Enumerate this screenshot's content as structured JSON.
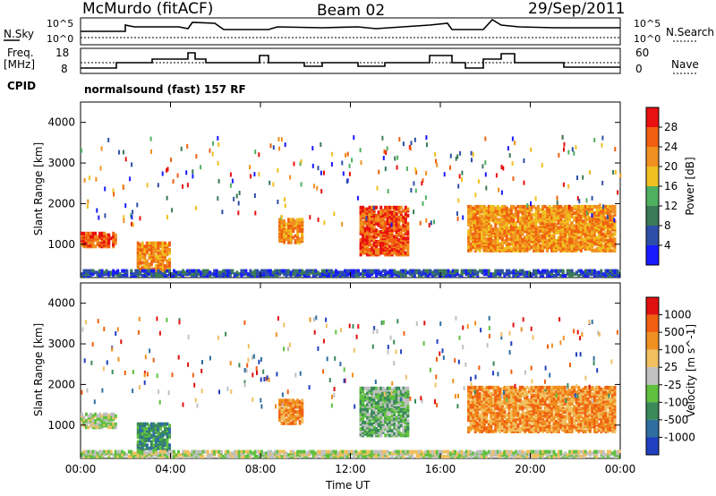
{
  "header": {
    "station": "McMurdo (fitACF)",
    "beam": "Beam 02",
    "date": "29/Sep/2011"
  },
  "status_panels": {
    "nsky_label": "N.Sky",
    "nsearch_label": "N.Search",
    "freq_label_1": "Freq.",
    "freq_label_2": "[MHz]",
    "nave_label": "Nave",
    "cpid_label": "CPID",
    "cpid_value": "normalsound (fast) 157 RF",
    "noise_ticks_left": [
      "10^5",
      "10^0"
    ],
    "noise_ticks_right": [
      "10^5",
      "10^0"
    ],
    "freq_ticks": [
      "18",
      "8"
    ],
    "nave_ticks": [
      "60",
      "0"
    ]
  },
  "chart_data": [
    {
      "type": "heatmap",
      "name": "power",
      "ylabel": "Slant Range [km]",
      "xlabel": "Time UT",
      "ylim": [
        180,
        4500
      ],
      "xlim": [
        0,
        24
      ],
      "yticks": [
        "1000",
        "2000",
        "3000",
        "4000"
      ],
      "xticks": [
        "00:00",
        "04:00",
        "08:00",
        "12:00",
        "16:00",
        "20:00",
        "00:00"
      ],
      "colorbar": {
        "label": "Power [dB]",
        "ticks": [
          "4",
          "8",
          "12",
          "16",
          "20",
          "24",
          "28"
        ],
        "colors": [
          "#1a1aff",
          "#2e4fa8",
          "#3b7a57",
          "#4fb060",
          "#f0c020",
          "#f09020",
          "#f06010",
          "#e81010"
        ]
      },
      "regions": [
        {
          "t0": 0.0,
          "t1": 1.6,
          "r0": 900,
          "r1": 1250,
          "level": 6
        },
        {
          "t0": 2.5,
          "t1": 4.0,
          "r0": 300,
          "r1": 1000,
          "level": 5
        },
        {
          "t0": 8.8,
          "t1": 9.8,
          "r0": 1000,
          "r1": 1600,
          "level": 5
        },
        {
          "t0": 12.4,
          "t1": 14.5,
          "r0": 700,
          "r1": 1900,
          "level": 6
        },
        {
          "t0": 17.2,
          "t1": 23.8,
          "r0": 800,
          "r1": 1900,
          "level": 5
        },
        {
          "t0": 0.0,
          "t1": 24.0,
          "r0": 180,
          "r1": 320,
          "level": 1
        }
      ]
    },
    {
      "type": "heatmap",
      "name": "velocity",
      "ylabel": "Slant Range [km]",
      "xlabel": "Time UT",
      "ylim": [
        180,
        4500
      ],
      "xlim": [
        0,
        24
      ],
      "yticks": [
        "1000",
        "2000",
        "3000",
        "4000"
      ],
      "xticks": [
        "00:00",
        "04:00",
        "08:00",
        "12:00",
        "16:00",
        "20:00",
        "00:00"
      ],
      "colorbar": {
        "label": "Velocity [m s^-1]",
        "ticks": [
          "1000",
          "500",
          "100",
          "25",
          "-25",
          "-100",
          "-500",
          "-1000"
        ],
        "colors": [
          "#2040c0",
          "#2e6fa0",
          "#3a8a5a",
          "#60c040",
          "#c0c0c0",
          "#f0c060",
          "#f09020",
          "#f06010",
          "#e01010"
        ]
      },
      "regions": [
        {
          "t0": 0.0,
          "t1": 1.6,
          "r0": 900,
          "r1": 1250,
          "level": 4
        },
        {
          "t0": 2.5,
          "t1": 4.0,
          "r0": 300,
          "r1": 1000,
          "level": 2
        },
        {
          "t0": 8.8,
          "t1": 9.8,
          "r0": 1000,
          "r1": 1600,
          "level": 6
        },
        {
          "t0": 12.4,
          "t1": 14.5,
          "r0": 700,
          "r1": 1900,
          "level": 3
        },
        {
          "t0": 17.2,
          "t1": 23.8,
          "r0": 800,
          "r1": 1900,
          "level": 6
        },
        {
          "t0": 0.0,
          "t1": 24.0,
          "r0": 180,
          "r1": 320,
          "level": 4
        }
      ]
    }
  ]
}
